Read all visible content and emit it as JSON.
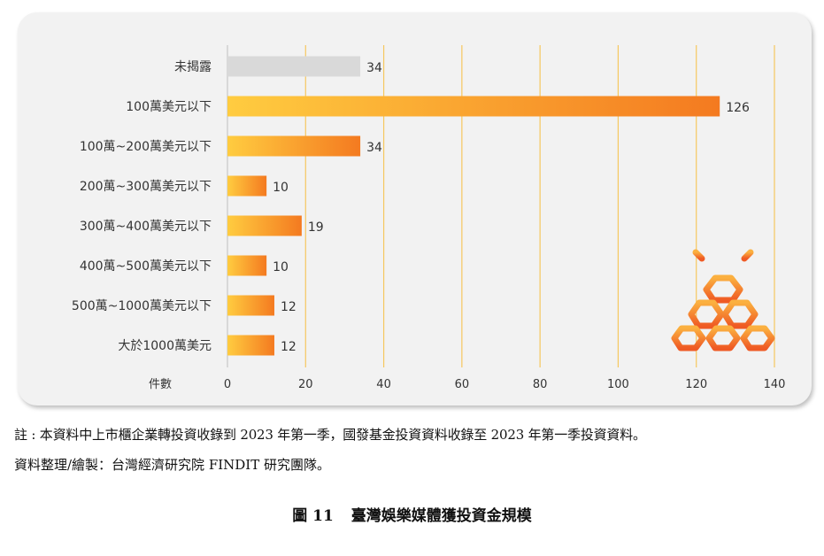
{
  "chart_data": {
    "type": "bar",
    "orientation": "horizontal",
    "categories": [
      "未揭露",
      "100萬美元以下",
      "100萬~200萬美元以下",
      "200萬~300萬美元以下",
      "300萬~400萬美元以下",
      "400萬~500萬美元以下",
      "500萬~1000萬美元以下",
      "大於1000萬美元"
    ],
    "values": [
      34,
      126,
      34,
      10,
      19,
      10,
      12,
      12
    ],
    "xlabel": "件數",
    "xlim": [
      0,
      140
    ],
    "xticks": [
      0,
      20,
      40,
      60,
      80,
      100,
      120,
      140
    ],
    "grid": true,
    "colors": {
      "undisclosed": "#d9d9d9",
      "gradient_start": "#ffcc40",
      "gradient_end": "#f47a20",
      "gridline": "#f6c85f"
    }
  },
  "notes": {
    "note_1": "註 : 本資料中上市櫃企業轉投資收錄到 2023 年第一季，國發基金投資資料收錄至 2023 年第一季投資資料。",
    "note_2": "資料整理/繪製：台灣經濟研究院 FINDIT 研究團隊。"
  },
  "caption": {
    "number": "圖 11",
    "title": "臺灣娛樂媒體獲投資金規模"
  },
  "logo": "findit-logo-icon"
}
